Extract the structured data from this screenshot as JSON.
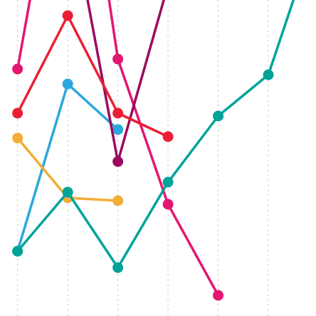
{
  "chart_data": {
    "type": "line",
    "title": "",
    "xlabel": "",
    "ylabel": "",
    "x": [
      0,
      1,
      2,
      3,
      4,
      5,
      6
    ],
    "xlim": [
      -0.35,
      5.95
    ],
    "ylim": [
      0,
      444
    ],
    "grid": {
      "vertical": true,
      "horizontal": false,
      "style": "dashed"
    },
    "legend": "none",
    "series": [
      {
        "color": "#2aa8dc",
        "values": [
          [
            0,
            91
          ],
          [
            1,
            326
          ],
          [
            2,
            262
          ]
        ]
      },
      {
        "color": "#f2ad36",
        "values": [
          [
            0,
            250
          ],
          [
            1,
            166
          ],
          [
            2,
            162
          ]
        ]
      },
      {
        "color": "#e4166f",
        "values": [
          [
            1.78,
            465
          ],
          [
            2,
            361
          ],
          [
            3,
            157
          ],
          [
            4,
            29
          ]
        ]
      },
      {
        "color": "#9b0a5f",
        "values": [
          [
            1.34,
            465
          ],
          [
            2,
            217
          ],
          [
            3,
            465
          ]
        ]
      },
      {
        "color": "#ea1f35",
        "values": [
          [
            0,
            285
          ],
          [
            1,
            422
          ],
          [
            2,
            285
          ],
          [
            3,
            252
          ]
        ]
      },
      {
        "color": "#e4166f",
        "values": [
          [
            0,
            347
          ],
          [
            0.3,
            465
          ]
        ]
      },
      {
        "color": "#00a39a",
        "values": [
          [
            0,
            91
          ],
          [
            1,
            174
          ],
          [
            2,
            68
          ],
          [
            3,
            188
          ],
          [
            4,
            281
          ],
          [
            5,
            339
          ],
          [
            5.6,
            465
          ]
        ]
      }
    ]
  }
}
